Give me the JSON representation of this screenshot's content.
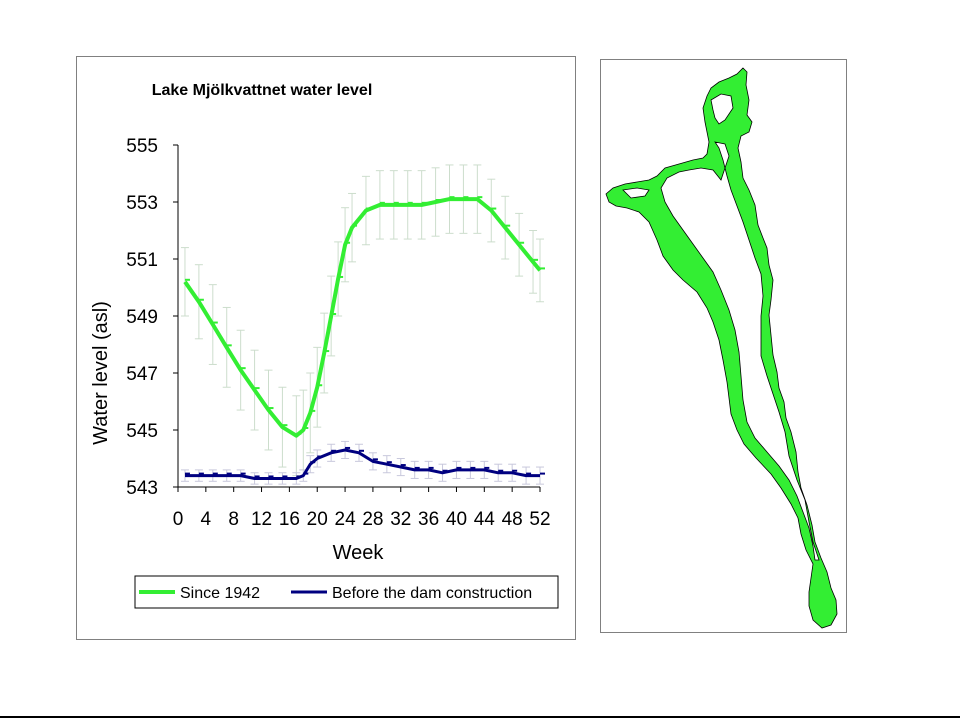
{
  "chart_data": {
    "type": "line",
    "title": "Lake Mjölkvattnet water level",
    "xlabel": "Week",
    "ylabel": "Water level (asl)",
    "xlim": [
      0,
      52
    ],
    "ylim": [
      543,
      555
    ],
    "xticks": [
      0,
      4,
      8,
      12,
      16,
      20,
      24,
      28,
      32,
      36,
      40,
      44,
      48,
      52
    ],
    "yticks": [
      543,
      545,
      547,
      549,
      551,
      553,
      555
    ],
    "grid": false,
    "legend_position": "bottom",
    "error_bars": true,
    "series": [
      {
        "name": "Since 1942",
        "color": "#33ee33",
        "x": [
          1,
          3,
          5,
          7,
          9,
          11,
          13,
          15,
          17,
          18,
          19,
          20,
          21,
          22,
          23,
          24,
          25,
          27,
          29,
          31,
          33,
          35,
          37,
          39,
          41,
          43,
          45,
          47,
          49,
          51,
          52
        ],
        "y": [
          550.2,
          549.5,
          548.7,
          547.9,
          547.1,
          546.4,
          545.7,
          545.1,
          544.8,
          545.0,
          545.6,
          546.5,
          547.7,
          549.0,
          550.3,
          551.5,
          552.1,
          552.7,
          552.9,
          552.9,
          552.9,
          552.9,
          553.0,
          553.1,
          553.1,
          553.1,
          552.7,
          552.1,
          551.5,
          550.9,
          550.6
        ],
        "err": [
          1.2,
          1.3,
          1.4,
          1.4,
          1.4,
          1.4,
          1.4,
          1.4,
          1.4,
          1.4,
          1.4,
          1.4,
          1.4,
          1.4,
          1.3,
          1.3,
          1.2,
          1.2,
          1.2,
          1.2,
          1.2,
          1.2,
          1.2,
          1.2,
          1.2,
          1.2,
          1.1,
          1.1,
          1.1,
          1.1,
          1.1
        ]
      },
      {
        "name": "Before the dam construction",
        "color": "#000080",
        "x": [
          1,
          3,
          5,
          7,
          9,
          11,
          13,
          15,
          17,
          18,
          19,
          20,
          22,
          24,
          26,
          28,
          30,
          32,
          34,
          36,
          38,
          40,
          42,
          44,
          46,
          48,
          50,
          52
        ],
        "y": [
          543.4,
          543.4,
          543.4,
          543.4,
          543.4,
          543.3,
          543.3,
          543.3,
          543.3,
          543.4,
          543.8,
          544.0,
          544.2,
          544.3,
          544.2,
          543.9,
          543.8,
          543.7,
          543.6,
          543.6,
          543.5,
          543.6,
          543.6,
          543.6,
          543.5,
          543.5,
          543.4,
          543.4
        ],
        "err": [
          0.2,
          0.2,
          0.2,
          0.2,
          0.2,
          0.2,
          0.2,
          0.2,
          0.2,
          0.2,
          0.3,
          0.3,
          0.3,
          0.3,
          0.3,
          0.3,
          0.3,
          0.3,
          0.3,
          0.3,
          0.3,
          0.3,
          0.3,
          0.3,
          0.3,
          0.3,
          0.3,
          0.3
        ]
      }
    ]
  },
  "map": {
    "lake_color": "#33ee33",
    "outline_color": "#000000"
  }
}
